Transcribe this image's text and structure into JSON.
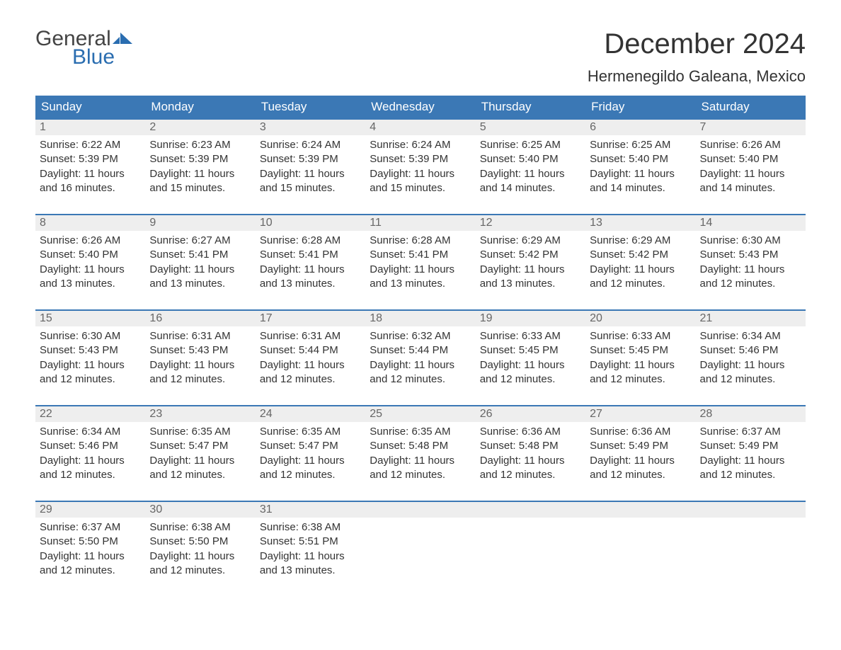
{
  "brand": {
    "text_general": "General",
    "text_blue": "Blue",
    "logo_color": "#2a6db0",
    "text_dark": "#444444"
  },
  "header": {
    "title": "December 2024",
    "location": "Hermenegildo Galeana, Mexico"
  },
  "colors": {
    "header_bg": "#3b78b5",
    "header_text": "#ffffff",
    "daynum_bg": "#eeeeee",
    "daynum_text": "#666666",
    "body_text": "#333333",
    "week_divider": "#3b78b5",
    "page_bg": "#ffffff"
  },
  "weekdays": [
    "Sunday",
    "Monday",
    "Tuesday",
    "Wednesday",
    "Thursday",
    "Friday",
    "Saturday"
  ],
  "weeks": [
    [
      {
        "n": "1",
        "sunrise": "Sunrise: 6:22 AM",
        "sunset": "Sunset: 5:39 PM",
        "daylight1": "Daylight: 11 hours",
        "daylight2": "and 16 minutes."
      },
      {
        "n": "2",
        "sunrise": "Sunrise: 6:23 AM",
        "sunset": "Sunset: 5:39 PM",
        "daylight1": "Daylight: 11 hours",
        "daylight2": "and 15 minutes."
      },
      {
        "n": "3",
        "sunrise": "Sunrise: 6:24 AM",
        "sunset": "Sunset: 5:39 PM",
        "daylight1": "Daylight: 11 hours",
        "daylight2": "and 15 minutes."
      },
      {
        "n": "4",
        "sunrise": "Sunrise: 6:24 AM",
        "sunset": "Sunset: 5:39 PM",
        "daylight1": "Daylight: 11 hours",
        "daylight2": "and 15 minutes."
      },
      {
        "n": "5",
        "sunrise": "Sunrise: 6:25 AM",
        "sunset": "Sunset: 5:40 PM",
        "daylight1": "Daylight: 11 hours",
        "daylight2": "and 14 minutes."
      },
      {
        "n": "6",
        "sunrise": "Sunrise: 6:25 AM",
        "sunset": "Sunset: 5:40 PM",
        "daylight1": "Daylight: 11 hours",
        "daylight2": "and 14 minutes."
      },
      {
        "n": "7",
        "sunrise": "Sunrise: 6:26 AM",
        "sunset": "Sunset: 5:40 PM",
        "daylight1": "Daylight: 11 hours",
        "daylight2": "and 14 minutes."
      }
    ],
    [
      {
        "n": "8",
        "sunrise": "Sunrise: 6:26 AM",
        "sunset": "Sunset: 5:40 PM",
        "daylight1": "Daylight: 11 hours",
        "daylight2": "and 13 minutes."
      },
      {
        "n": "9",
        "sunrise": "Sunrise: 6:27 AM",
        "sunset": "Sunset: 5:41 PM",
        "daylight1": "Daylight: 11 hours",
        "daylight2": "and 13 minutes."
      },
      {
        "n": "10",
        "sunrise": "Sunrise: 6:28 AM",
        "sunset": "Sunset: 5:41 PM",
        "daylight1": "Daylight: 11 hours",
        "daylight2": "and 13 minutes."
      },
      {
        "n": "11",
        "sunrise": "Sunrise: 6:28 AM",
        "sunset": "Sunset: 5:41 PM",
        "daylight1": "Daylight: 11 hours",
        "daylight2": "and 13 minutes."
      },
      {
        "n": "12",
        "sunrise": "Sunrise: 6:29 AM",
        "sunset": "Sunset: 5:42 PM",
        "daylight1": "Daylight: 11 hours",
        "daylight2": "and 13 minutes."
      },
      {
        "n": "13",
        "sunrise": "Sunrise: 6:29 AM",
        "sunset": "Sunset: 5:42 PM",
        "daylight1": "Daylight: 11 hours",
        "daylight2": "and 12 minutes."
      },
      {
        "n": "14",
        "sunrise": "Sunrise: 6:30 AM",
        "sunset": "Sunset: 5:43 PM",
        "daylight1": "Daylight: 11 hours",
        "daylight2": "and 12 minutes."
      }
    ],
    [
      {
        "n": "15",
        "sunrise": "Sunrise: 6:30 AM",
        "sunset": "Sunset: 5:43 PM",
        "daylight1": "Daylight: 11 hours",
        "daylight2": "and 12 minutes."
      },
      {
        "n": "16",
        "sunrise": "Sunrise: 6:31 AM",
        "sunset": "Sunset: 5:43 PM",
        "daylight1": "Daylight: 11 hours",
        "daylight2": "and 12 minutes."
      },
      {
        "n": "17",
        "sunrise": "Sunrise: 6:31 AM",
        "sunset": "Sunset: 5:44 PM",
        "daylight1": "Daylight: 11 hours",
        "daylight2": "and 12 minutes."
      },
      {
        "n": "18",
        "sunrise": "Sunrise: 6:32 AM",
        "sunset": "Sunset: 5:44 PM",
        "daylight1": "Daylight: 11 hours",
        "daylight2": "and 12 minutes."
      },
      {
        "n": "19",
        "sunrise": "Sunrise: 6:33 AM",
        "sunset": "Sunset: 5:45 PM",
        "daylight1": "Daylight: 11 hours",
        "daylight2": "and 12 minutes."
      },
      {
        "n": "20",
        "sunrise": "Sunrise: 6:33 AM",
        "sunset": "Sunset: 5:45 PM",
        "daylight1": "Daylight: 11 hours",
        "daylight2": "and 12 minutes."
      },
      {
        "n": "21",
        "sunrise": "Sunrise: 6:34 AM",
        "sunset": "Sunset: 5:46 PM",
        "daylight1": "Daylight: 11 hours",
        "daylight2": "and 12 minutes."
      }
    ],
    [
      {
        "n": "22",
        "sunrise": "Sunrise: 6:34 AM",
        "sunset": "Sunset: 5:46 PM",
        "daylight1": "Daylight: 11 hours",
        "daylight2": "and 12 minutes."
      },
      {
        "n": "23",
        "sunrise": "Sunrise: 6:35 AM",
        "sunset": "Sunset: 5:47 PM",
        "daylight1": "Daylight: 11 hours",
        "daylight2": "and 12 minutes."
      },
      {
        "n": "24",
        "sunrise": "Sunrise: 6:35 AM",
        "sunset": "Sunset: 5:47 PM",
        "daylight1": "Daylight: 11 hours",
        "daylight2": "and 12 minutes."
      },
      {
        "n": "25",
        "sunrise": "Sunrise: 6:35 AM",
        "sunset": "Sunset: 5:48 PM",
        "daylight1": "Daylight: 11 hours",
        "daylight2": "and 12 minutes."
      },
      {
        "n": "26",
        "sunrise": "Sunrise: 6:36 AM",
        "sunset": "Sunset: 5:48 PM",
        "daylight1": "Daylight: 11 hours",
        "daylight2": "and 12 minutes."
      },
      {
        "n": "27",
        "sunrise": "Sunrise: 6:36 AM",
        "sunset": "Sunset: 5:49 PM",
        "daylight1": "Daylight: 11 hours",
        "daylight2": "and 12 minutes."
      },
      {
        "n": "28",
        "sunrise": "Sunrise: 6:37 AM",
        "sunset": "Sunset: 5:49 PM",
        "daylight1": "Daylight: 11 hours",
        "daylight2": "and 12 minutes."
      }
    ],
    [
      {
        "n": "29",
        "sunrise": "Sunrise: 6:37 AM",
        "sunset": "Sunset: 5:50 PM",
        "daylight1": "Daylight: 11 hours",
        "daylight2": "and 12 minutes."
      },
      {
        "n": "30",
        "sunrise": "Sunrise: 6:38 AM",
        "sunset": "Sunset: 5:50 PM",
        "daylight1": "Daylight: 11 hours",
        "daylight2": "and 12 minutes."
      },
      {
        "n": "31",
        "sunrise": "Sunrise: 6:38 AM",
        "sunset": "Sunset: 5:51 PM",
        "daylight1": "Daylight: 11 hours",
        "daylight2": "and 13 minutes."
      },
      {
        "empty": true
      },
      {
        "empty": true
      },
      {
        "empty": true
      },
      {
        "empty": true
      }
    ]
  ]
}
